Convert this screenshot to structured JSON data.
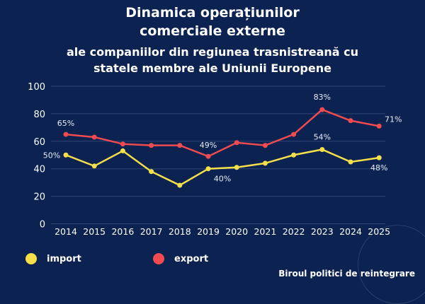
{
  "title_line1": "Dinamica operațiunilor",
  "title_line2": "comerciale externe",
  "subtitle_line1": "ale companiilor din regiunea trasnistreană cu",
  "subtitle_line2": "statele membre ale Uniunii Europene",
  "source": "Biroul politici de reintegrare",
  "colors": {
    "background": "#0c2352",
    "import": "#f5e04a",
    "export": "#f04b4f",
    "grid": "#2f4675"
  },
  "chart_data": {
    "type": "line",
    "categories": [
      "2014",
      "2015",
      "2016",
      "2017",
      "2018",
      "2019",
      "2020",
      "2021",
      "2022",
      "2023",
      "2024",
      "2025"
    ],
    "ylim": [
      0,
      100
    ],
    "yticks": [
      0,
      20,
      40,
      60,
      80,
      100
    ],
    "grid": true,
    "legend": "bottom-left",
    "series": [
      {
        "name": "import",
        "color": "#f5e04a",
        "values": [
          50,
          42,
          53,
          38,
          28,
          40,
          41,
          44,
          50,
          54,
          45,
          48
        ],
        "labels": [
          {
            "index": 0,
            "text": "50%"
          },
          {
            "index": 5,
            "text": "40%"
          },
          {
            "index": 9,
            "text": "54%"
          },
          {
            "index": 11,
            "text": "48%"
          }
        ]
      },
      {
        "name": "export",
        "color": "#f04b4f",
        "values": [
          65,
          63,
          58,
          57,
          57,
          49,
          59,
          57,
          65,
          83,
          75,
          71
        ],
        "labels": [
          {
            "index": 0,
            "text": "65%"
          },
          {
            "index": 5,
            "text": "49%"
          },
          {
            "index": 9,
            "text": "83%"
          },
          {
            "index": 11,
            "text": "71%"
          }
        ]
      }
    ]
  }
}
